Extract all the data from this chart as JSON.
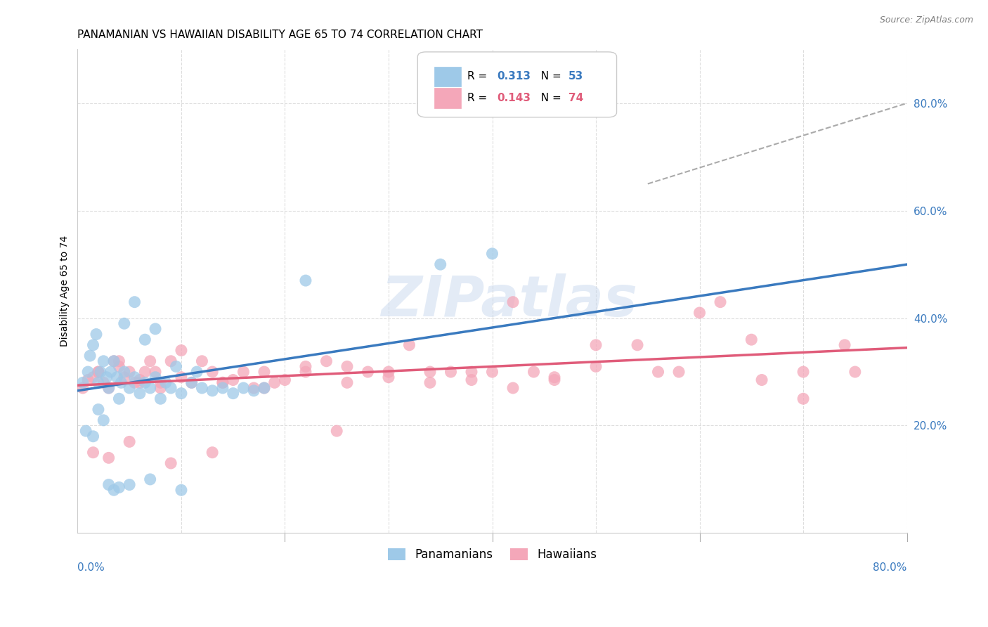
{
  "title": "PANAMANIAN VS HAWAIIAN DISABILITY AGE 65 TO 74 CORRELATION CHART",
  "source": "Source: ZipAtlas.com",
  "ylabel": "Disability Age 65 to 74",
  "blue_R": "0.313",
  "blue_N": "53",
  "pink_R": "0.143",
  "pink_N": "74",
  "blue_scatter_x": [
    0.5,
    1.0,
    1.2,
    1.5,
    1.8,
    2.0,
    2.2,
    2.5,
    2.8,
    3.0,
    3.2,
    3.5,
    3.8,
    4.0,
    4.2,
    4.5,
    5.0,
    5.5,
    6.0,
    6.5,
    7.0,
    7.5,
    8.0,
    8.5,
    9.0,
    10.0,
    11.0,
    12.0,
    13.0,
    14.0,
    15.0,
    16.0,
    17.0,
    18.0,
    4.5,
    5.5,
    6.5,
    7.5,
    9.5,
    11.5,
    0.8,
    1.5,
    2.0,
    2.5,
    3.0,
    3.5,
    4.0,
    5.0,
    7.0,
    10.0,
    22.0,
    35.0,
    40.0
  ],
  "blue_scatter_y": [
    28.0,
    30.0,
    33.0,
    35.0,
    37.0,
    28.0,
    30.0,
    32.0,
    29.0,
    27.0,
    30.0,
    32.0,
    29.0,
    25.0,
    28.0,
    30.0,
    27.0,
    29.0,
    26.0,
    28.0,
    27.0,
    29.0,
    25.0,
    28.0,
    27.0,
    26.0,
    28.0,
    27.0,
    26.5,
    27.0,
    26.0,
    27.0,
    26.5,
    27.0,
    39.0,
    43.0,
    36.0,
    38.0,
    31.0,
    30.0,
    19.0,
    18.0,
    23.0,
    21.0,
    9.0,
    8.0,
    8.5,
    9.0,
    10.0,
    8.0,
    47.0,
    50.0,
    52.0
  ],
  "pink_scatter_x": [
    0.5,
    1.0,
    1.5,
    2.0,
    2.5,
    3.0,
    3.5,
    4.0,
    4.5,
    5.0,
    5.5,
    6.0,
    6.5,
    7.0,
    7.5,
    8.0,
    9.0,
    10.0,
    11.0,
    12.0,
    13.0,
    14.0,
    15.0,
    16.0,
    17.0,
    18.0,
    19.0,
    20.0,
    22.0,
    24.0,
    26.0,
    28.0,
    30.0,
    32.0,
    34.0,
    36.0,
    38.0,
    40.0,
    42.0,
    44.0,
    46.0,
    50.0,
    54.0,
    58.0,
    62.0,
    66.0,
    70.0,
    74.0,
    2.0,
    4.0,
    6.0,
    8.0,
    10.0,
    14.0,
    18.0,
    22.0,
    26.0,
    30.0,
    34.0,
    38.0,
    42.0,
    46.0,
    50.0,
    56.0,
    60.0,
    65.0,
    70.0,
    75.0,
    1.5,
    3.0,
    5.0,
    9.0,
    13.0,
    25.0
  ],
  "pink_scatter_y": [
    27.0,
    28.5,
    29.0,
    30.0,
    28.0,
    27.0,
    32.0,
    31.0,
    29.0,
    30.0,
    28.0,
    28.5,
    30.0,
    32.0,
    30.0,
    28.0,
    32.0,
    34.0,
    28.0,
    32.0,
    30.0,
    28.0,
    28.5,
    30.0,
    27.0,
    30.0,
    28.0,
    28.5,
    30.0,
    32.0,
    28.0,
    30.0,
    30.0,
    35.0,
    28.0,
    30.0,
    30.0,
    30.0,
    43.0,
    30.0,
    28.5,
    35.0,
    35.0,
    30.0,
    43.0,
    28.5,
    30.0,
    35.0,
    30.0,
    32.0,
    28.0,
    27.0,
    29.0,
    28.0,
    27.0,
    31.0,
    31.0,
    29.0,
    30.0,
    28.5,
    27.0,
    29.0,
    31.0,
    30.0,
    41.0,
    36.0,
    25.0,
    30.0,
    15.0,
    14.0,
    17.0,
    13.0,
    15.0,
    19.0
  ],
  "blue_line_x0": 0.0,
  "blue_line_x1": 80.0,
  "blue_line_y0": 26.5,
  "blue_line_y1": 50.0,
  "pink_line_x0": 0.0,
  "pink_line_x1": 80.0,
  "pink_line_y0": 27.5,
  "pink_line_y1": 34.5,
  "dashed_line_x0": 55.0,
  "dashed_line_x1": 80.0,
  "dashed_line_y0": 65.0,
  "dashed_line_y1": 80.0,
  "xlim": [
    0.0,
    80.0
  ],
  "ylim": [
    0.0,
    90.0
  ],
  "ytick_positions": [
    0,
    20,
    40,
    60,
    80
  ],
  "ytick_labels": [
    "",
    "20.0%",
    "40.0%",
    "60.0%",
    "80.0%"
  ],
  "background_color": "#ffffff",
  "grid_color": "#dddddd",
  "blue_line_color": "#3a7abf",
  "blue_scatter_color": "#9ec9e8",
  "pink_line_color": "#e05c7a",
  "pink_scatter_color": "#f4a7b9",
  "title_fontsize": 11,
  "watermark_text": "ZIPatlas",
  "watermark_color": "#c8d8ee"
}
